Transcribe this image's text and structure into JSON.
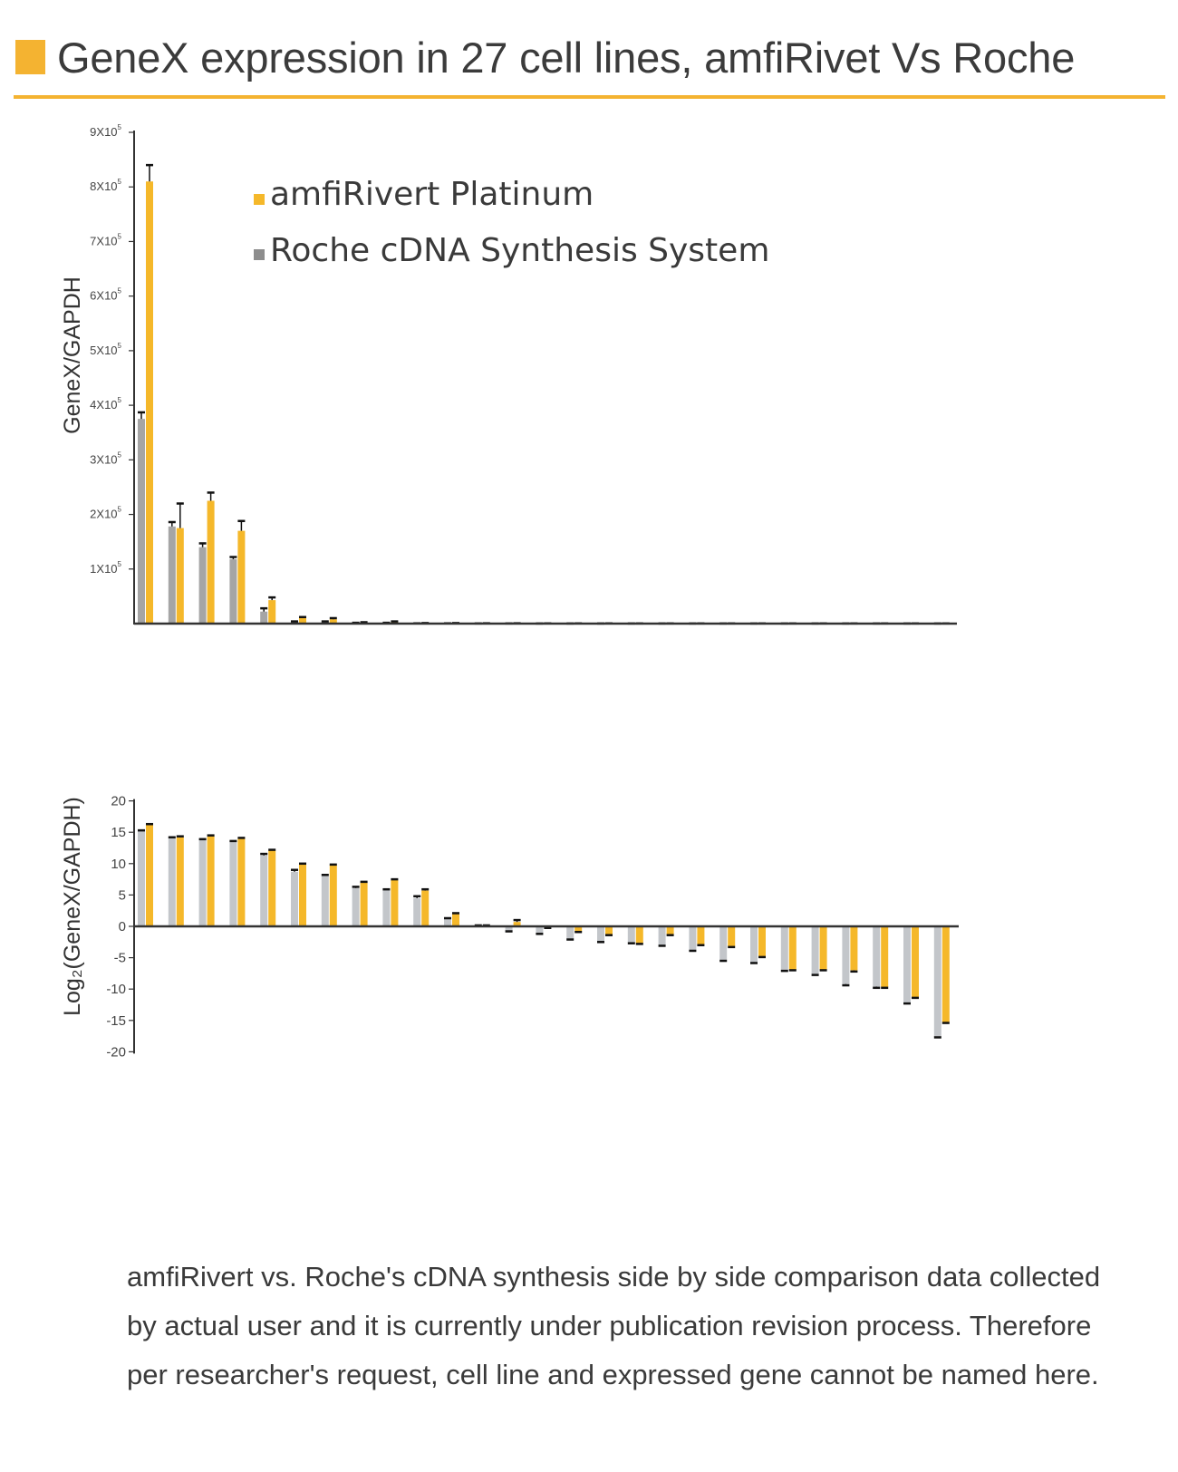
{
  "header": {
    "title": "GeneX expression in 27 cell lines, amfiRivet Vs Roche",
    "accent_color": "#f4b331"
  },
  "colors": {
    "amfi": "#f5b82a",
    "roche_top": "#a5a5a5",
    "roche_bottom": "#c3c6ca",
    "error_bar": "#111111",
    "axis": "#333333"
  },
  "legend": {
    "amfi_label": "amfiRivert Platinum",
    "roche_label": "Roche cDNA Synthesis System"
  },
  "chart_data": [
    {
      "type": "bar",
      "ylabel": "GeneX/GAPDH",
      "ylim": [
        0,
        900000
      ],
      "yticks": [
        {
          "value": 100000,
          "mantissa": "1X10",
          "exp": "5"
        },
        {
          "value": 200000,
          "mantissa": "2X10",
          "exp": "5"
        },
        {
          "value": 300000,
          "mantissa": "3X10",
          "exp": "5"
        },
        {
          "value": 400000,
          "mantissa": "4X10",
          "exp": "5"
        },
        {
          "value": 500000,
          "mantissa": "5X10",
          "exp": "5"
        },
        {
          "value": 600000,
          "mantissa": "6X10",
          "exp": "5"
        },
        {
          "value": 700000,
          "mantissa": "7X10",
          "exp": "5"
        },
        {
          "value": 800000,
          "mantissa": "8X10",
          "exp": "5"
        },
        {
          "value": 900000,
          "mantissa": "9X10",
          "exp": "5"
        }
      ],
      "legend_position": "top-right",
      "categories_count": 27,
      "series": [
        {
          "name": "Roche cDNA Synthesis System",
          "values": [
            375000,
            178000,
            140000,
            118000,
            22000,
            3000,
            3000,
            1000,
            1000,
            500,
            500,
            300,
            300,
            200,
            200,
            200,
            200,
            200,
            200,
            200,
            200,
            200,
            200,
            200,
            200,
            200,
            200
          ],
          "errors": [
            12000,
            8000,
            7000,
            4000,
            6000,
            1000,
            1000,
            500,
            500,
            0,
            0,
            0,
            0,
            0,
            0,
            0,
            0,
            0,
            0,
            0,
            0,
            0,
            0,
            0,
            0,
            0,
            0
          ]
        },
        {
          "name": "amfiRivert Platinum",
          "values": [
            810000,
            175000,
            225000,
            170000,
            43000,
            10000,
            8000,
            2000,
            3000,
            1000,
            1000,
            600,
            600,
            400,
            400,
            400,
            300,
            300,
            300,
            300,
            300,
            300,
            300,
            300,
            300,
            300,
            300
          ],
          "errors": [
            30000,
            45000,
            15000,
            18000,
            5000,
            2000,
            2000,
            500,
            1000,
            0,
            0,
            0,
            0,
            0,
            0,
            0,
            0,
            0,
            0,
            0,
            0,
            0,
            0,
            0,
            0,
            0,
            0
          ]
        }
      ]
    },
    {
      "type": "bar",
      "ylabel": "Log₂(GeneX/GAPDH)",
      "ylim": [
        -20,
        20
      ],
      "yticks": [
        20,
        15,
        10,
        5,
        0,
        -5,
        -10,
        -15,
        -20
      ],
      "categories_count": 27,
      "series": [
        {
          "name": "Roche cDNA Synthesis System",
          "values": [
            15.2,
            14.1,
            13.8,
            13.5,
            11.3,
            8.7,
            8.1,
            6.1,
            5.8,
            4.5,
            1.2,
            0.1,
            -0.7,
            -1.1,
            -2.0,
            -2.4,
            -2.6,
            -3.0,
            -3.8,
            -5.4,
            -5.7,
            -7.0,
            -7.6,
            -9.2,
            -9.6,
            -12.2,
            -17.6
          ],
          "errors": [
            0.1,
            0.1,
            0.1,
            0.1,
            0.25,
            0.3,
            0.1,
            0.2,
            0.1,
            0.3,
            0.1,
            0.05,
            0.1,
            0.1,
            0.1,
            0.1,
            0.1,
            0.1,
            0.1,
            0.1,
            0.15,
            0.1,
            0.15,
            0.2,
            0.2,
            0.1,
            0.1
          ]
        },
        {
          "name": "amfiRivert Platinum",
          "values": [
            16.2,
            14.2,
            14.4,
            14.0,
            12.1,
            9.9,
            9.8,
            7.0,
            7.4,
            5.7,
            2.0,
            0.1,
            0.7,
            -0.2,
            -0.8,
            -1.3,
            -2.7,
            -1.3,
            -2.9,
            -3.2,
            -4.8,
            -6.9,
            -6.9,
            -7.0,
            -9.7,
            -11.3,
            -15.3
          ],
          "errors": [
            0.1,
            0.15,
            0.1,
            0.1,
            0.1,
            0.1,
            0.05,
            0.1,
            0.1,
            0.2,
            0.1,
            0.05,
            0.3,
            0.05,
            0.1,
            0.1,
            0.1,
            0.1,
            0.1,
            0.1,
            0.1,
            0.1,
            0.1,
            0.2,
            0.1,
            0.1,
            0.1
          ]
        }
      ]
    }
  ],
  "footnote": "amfiRivert vs. Roche's cDNA synthesis side by side comparison data collected by actual user and it is currently under publication revision process. Therefore per researcher's request, cell line and expressed gene cannot be named here."
}
